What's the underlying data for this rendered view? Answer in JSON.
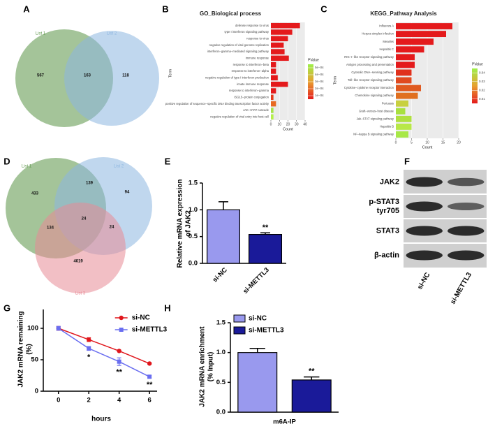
{
  "chart_data": [
    {
      "type": "venn",
      "panel": "A",
      "sets": [
        {
          "name": "List 1",
          "color": "#5a9446"
        },
        {
          "name": "List 2",
          "color": "#8db6e0"
        }
      ],
      "regions": [
        {
          "sets": [
            "List 1"
          ],
          "value": 567
        },
        {
          "sets": [
            "List 1",
            "List 2"
          ],
          "value": 163
        },
        {
          "sets": [
            "List 2"
          ],
          "value": 118
        }
      ]
    },
    {
      "type": "hbar",
      "panel": "B",
      "title": "GO_Biological process",
      "y_label": "Term",
      "x_label": "Count",
      "categories": [
        "defense response to virus",
        "type I interferon signaling pathway",
        "response to virus",
        "negative regulation of viral genome replication",
        "interferon−gamma−mediated signaling pathway",
        "immune response",
        "response to interferon−beta",
        "response to interferon−alpha",
        "negative regulation of type I interferon production",
        "innate immune response",
        "response to interferon−gamma",
        "ISG15−protein conjugation",
        "positive regulation of sequence−specific DNA binding transcription factor activity",
        "JAK−STAT cascade",
        "negative regulation of viral entry into host cell"
      ],
      "values": [
        34,
        25,
        20,
        15,
        16,
        21,
        6,
        6,
        8,
        20,
        6,
        3,
        6,
        3,
        3
      ],
      "colors": [
        "#e41a1c",
        "#e41a1c",
        "#e41a1c",
        "#e41a1c",
        "#e41a1c",
        "#e41a1c",
        "#e41a1c",
        "#e41a1c",
        "#e41a1c",
        "#e41a1c",
        "#e41a1c",
        "#e43a1c",
        "#e86a22",
        "#a6e34a",
        "#b5f04a"
      ],
      "xlim": [
        0,
        40
      ],
      "xticks": [
        0,
        10,
        20,
        30,
        40
      ],
      "grid": true,
      "colorbar": {
        "title": "PValue",
        "colors": [
          "#e41a1c",
          "#e8a030",
          "#9ef04a"
        ],
        "lim": [
          5e-05,
          0.00055
        ],
        "ticks": [
          {
            "value": 0.0005,
            "label": "5e−04"
          },
          {
            "value": 0.0004,
            "label": "4e−04"
          },
          {
            "value": 0.0003,
            "label": "3e−04"
          },
          {
            "value": 0.0002,
            "label": "2e−04"
          },
          {
            "value": 0.0001,
            "label": "1e−04"
          }
        ]
      }
    },
    {
      "type": "hbar",
      "panel": "C",
      "title": "KEGG_Pathway Analysis",
      "y_label": "Term",
      "x_label": "Count",
      "categories": [
        "Influenza A",
        "Herpes simplex infection",
        "Measles",
        "Hepatitis C",
        "RIG−I−like receptor signaling pathway",
        "Antigen processing and presentation",
        "Cytosolic DNA−sensing pathway",
        "Toll−like receptor signaling pathway",
        "Cytokine−cytokine receptor interaction",
        "Chemokine signaling pathway",
        "Pertussis",
        "Graft−versus−host disease",
        "Jak−STAT signaling pathway",
        "Hepatitis B",
        "NF−kappa B signaling pathway"
      ],
      "values": [
        18,
        16,
        12,
        9,
        6,
        6,
        5,
        5,
        8,
        7,
        4,
        3,
        5,
        5,
        4
      ],
      "colors": [
        "#e41a1c",
        "#e41a1c",
        "#e41a1c",
        "#e41a1c",
        "#e41a1c",
        "#e41a1c",
        "#e0301c",
        "#e04a20",
        "#e05a20",
        "#e07020",
        "#c8d040",
        "#a8e040",
        "#b0e040",
        "#b8e848",
        "#a8e848"
      ],
      "xlim": [
        0,
        20
      ],
      "xticks": [
        0,
        5,
        10,
        15,
        20
      ],
      "grid": true,
      "colorbar": {
        "title": "PValue",
        "colors": [
          "#e41a1c",
          "#e8a030",
          "#9ef04a"
        ],
        "lim": [
          0.005,
          0.045
        ],
        "ticks": [
          0.04,
          0.03,
          0.02,
          0.01
        ]
      }
    },
    {
      "type": "venn",
      "panel": "D",
      "sets": [
        {
          "name": "List 1",
          "color": "#5a9446"
        },
        {
          "name": "List 2",
          "color": "#8db6e0"
        },
        {
          "name": "List 3",
          "color": "#e88a96"
        }
      ],
      "regions": [
        {
          "sets": [
            "List 1"
          ],
          "value": 433
        },
        {
          "sets": [
            "List 1",
            "List 2"
          ],
          "value": 139
        },
        {
          "sets": [
            "List 2"
          ],
          "value": 94
        },
        {
          "sets": [
            "List 1",
            "List 3"
          ],
          "value": 134
        },
        {
          "sets": [
            "List 1",
            "List 2",
            "List 3"
          ],
          "value": 24
        },
        {
          "sets": [
            "List 2",
            "List 3"
          ],
          "value": 24
        },
        {
          "sets": [
            "List 3"
          ],
          "value": 4619
        }
      ]
    },
    {
      "type": "bar",
      "panel": "E",
      "y_label": [
        "Relative mRNA expression",
        "of JAK2"
      ],
      "categories": [
        "si-NC",
        "si-METTL3"
      ],
      "values": [
        1.0,
        0.54
      ],
      "errors": [
        0.15,
        0.03
      ],
      "colors": [
        "#9999ee",
        "#1a1a99"
      ],
      "ylim": [
        0,
        1.5
      ],
      "yticks": [
        {
          "value": 0,
          "label": "0.0"
        },
        0.5,
        {
          "value": 1,
          "label": "1.0"
        },
        1.5
      ],
      "annotations": [
        {
          "category": "si-METTL3",
          "text": "**"
        }
      ]
    },
    {
      "type": "blot",
      "panel": "F",
      "rows": [
        [
          "JAK2"
        ],
        [
          "p-STAT3",
          "tyr705"
        ],
        [
          "STAT3"
        ],
        [
          "β-actin"
        ]
      ],
      "lanes": [
        "si-NC",
        "si-METTL3"
      ]
    },
    {
      "type": "line",
      "panel": "G",
      "y_label": [
        "JAK2 mRNA remaining",
        "(%)"
      ],
      "x_label": "hours",
      "x": [
        0,
        2,
        4,
        6
      ],
      "xlim": [
        -1,
        6.5
      ],
      "xticks": [
        0,
        2,
        4,
        6
      ],
      "ylim": [
        0,
        130
      ],
      "yticks": [
        0,
        50,
        100
      ],
      "series": [
        {
          "name": "si-NC",
          "color": "#e0161c",
          "marker": "circle",
          "values": [
            100,
            82,
            64,
            44
          ],
          "errors": [
            3,
            3,
            1,
            1
          ]
        },
        {
          "name": "si-METTL3",
          "color": "#6a6ef0",
          "marker": "square",
          "values": [
            100,
            68,
            47,
            23
          ],
          "errors": [
            3,
            3,
            6,
            2
          ]
        }
      ],
      "annotations": [
        {
          "x": 2,
          "text": "*"
        },
        {
          "x": 4,
          "text": "**"
        },
        {
          "x": 6,
          "text": "**"
        }
      ]
    },
    {
      "type": "bar",
      "panel": "H",
      "y_label": [
        "JAK2 mRNA enrichment",
        "(% Input)"
      ],
      "categories": [
        "m6A-IP"
      ],
      "series": [
        {
          "name": "si-NC",
          "color": "#9999ee",
          "values": [
            1.0
          ],
          "errors": [
            0.07
          ]
        },
        {
          "name": "si-METTL3",
          "color": "#1a1a99",
          "values": [
            0.54
          ],
          "errors": [
            0.05
          ]
        }
      ],
      "ylim": [
        0,
        1.5
      ],
      "yticks": [
        {
          "value": 0,
          "label": "0.0"
        },
        0.5,
        {
          "value": 1,
          "label": "1.0"
        },
        1.5
      ],
      "annotations": [
        {
          "series": "si-METTL3",
          "text": "**"
        }
      ]
    }
  ]
}
